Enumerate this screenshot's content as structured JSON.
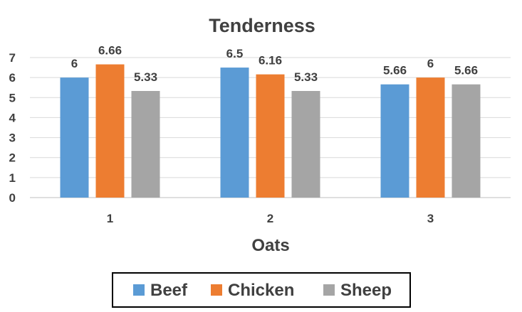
{
  "chart_data": {
    "type": "bar",
    "title": "Tenderness",
    "xlabel": "Oats",
    "ylabel": "",
    "categories": [
      "1",
      "2",
      "3"
    ],
    "series": [
      {
        "name": "Beef",
        "values": [
          6,
          6.5,
          5.66
        ],
        "color": "#5b9bd5",
        "labels": [
          "6",
          "6.5",
          "5.66"
        ]
      },
      {
        "name": "Chicken",
        "values": [
          6.66,
          6.16,
          6
        ],
        "color": "#ed7d31",
        "labels": [
          "6.66",
          "6.16",
          "6"
        ]
      },
      {
        "name": "Sheep",
        "values": [
          5.33,
          5.33,
          5.66
        ],
        "color": "#a5a5a5",
        "labels": [
          "5.33",
          "5.33",
          "5.66"
        ]
      }
    ],
    "ylim": [
      0,
      7
    ],
    "yticks": [
      "0",
      "1",
      "2",
      "3",
      "4",
      "5",
      "6",
      "7"
    ],
    "grid": true,
    "legend_position": "bottom"
  }
}
